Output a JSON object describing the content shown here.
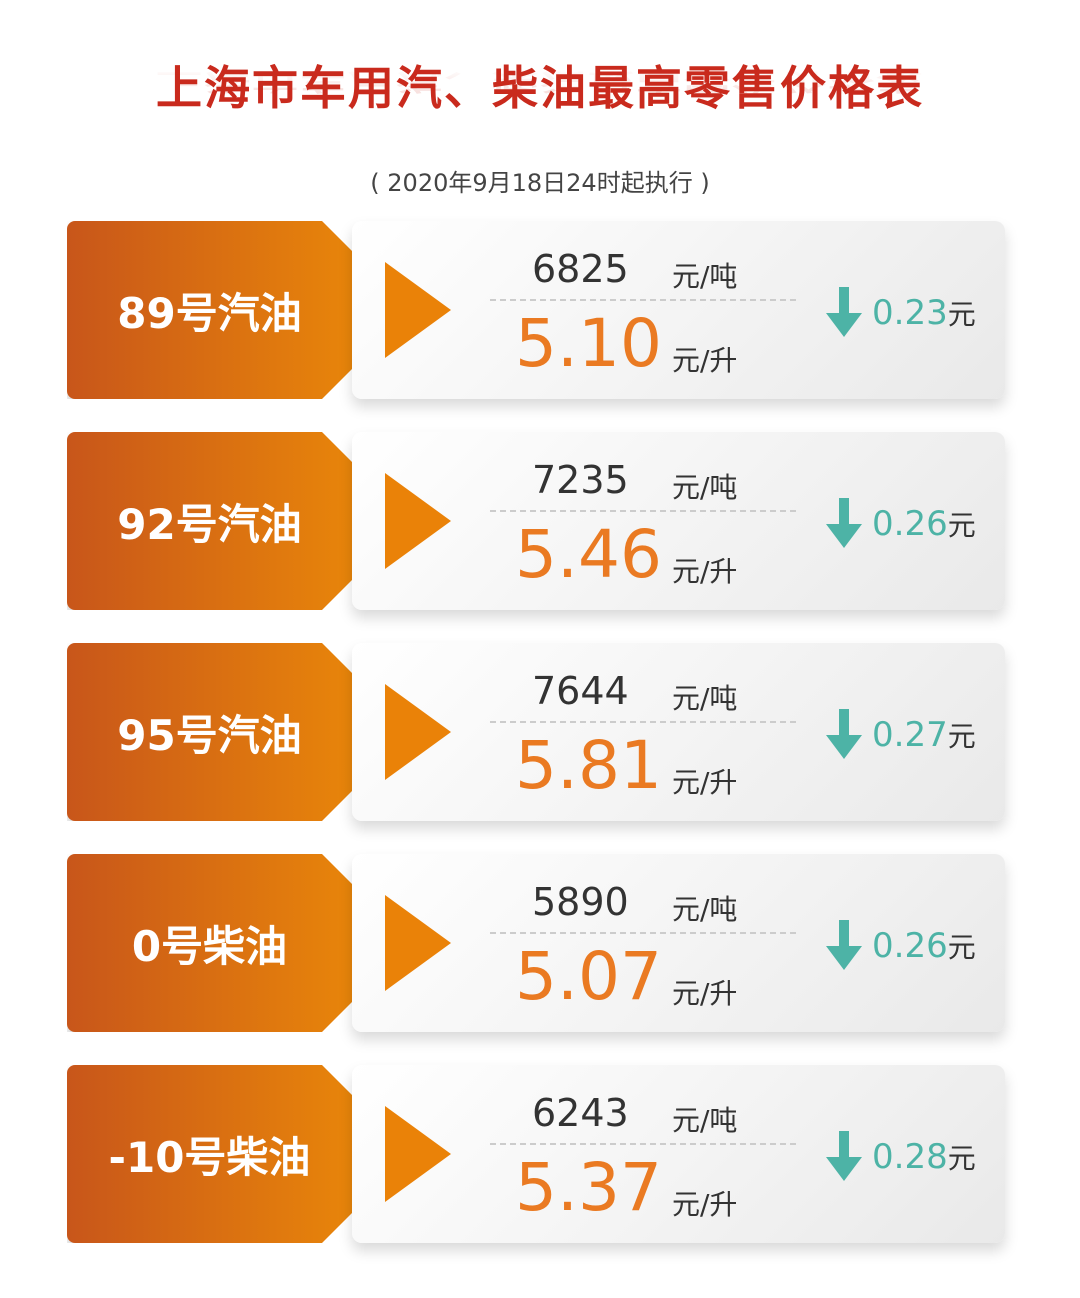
{
  "title": "上海市车用汽、柴油最高零售价格表",
  "subtitle": "( 2020年9月18日24时起执行 )",
  "colors": {
    "title": "#c92a1d",
    "tab": "#e8850a",
    "liter_price": "#ea7a22",
    "decrease": "#4db3a6"
  },
  "units": {
    "ton": "元/吨",
    "liter": "元/升",
    "yuan": "元"
  },
  "rows": [
    {
      "name": "89号汽油",
      "per_ton": "6825",
      "per_liter": "5.10",
      "change": "0.23",
      "direction": "down"
    },
    {
      "name": "92号汽油",
      "per_ton": "7235",
      "per_liter": "5.46",
      "change": "0.26",
      "direction": "down"
    },
    {
      "name": "95号汽油",
      "per_ton": "7644",
      "per_liter": "5.81",
      "change": "0.27",
      "direction": "down"
    },
    {
      "name": "0号柴油",
      "per_ton": "5890",
      "per_liter": "5.07",
      "change": "0.26",
      "direction": "down"
    },
    {
      "name": "-10号柴油",
      "per_ton": "6243",
      "per_liter": "5.37",
      "change": "0.28",
      "direction": "down"
    }
  ]
}
